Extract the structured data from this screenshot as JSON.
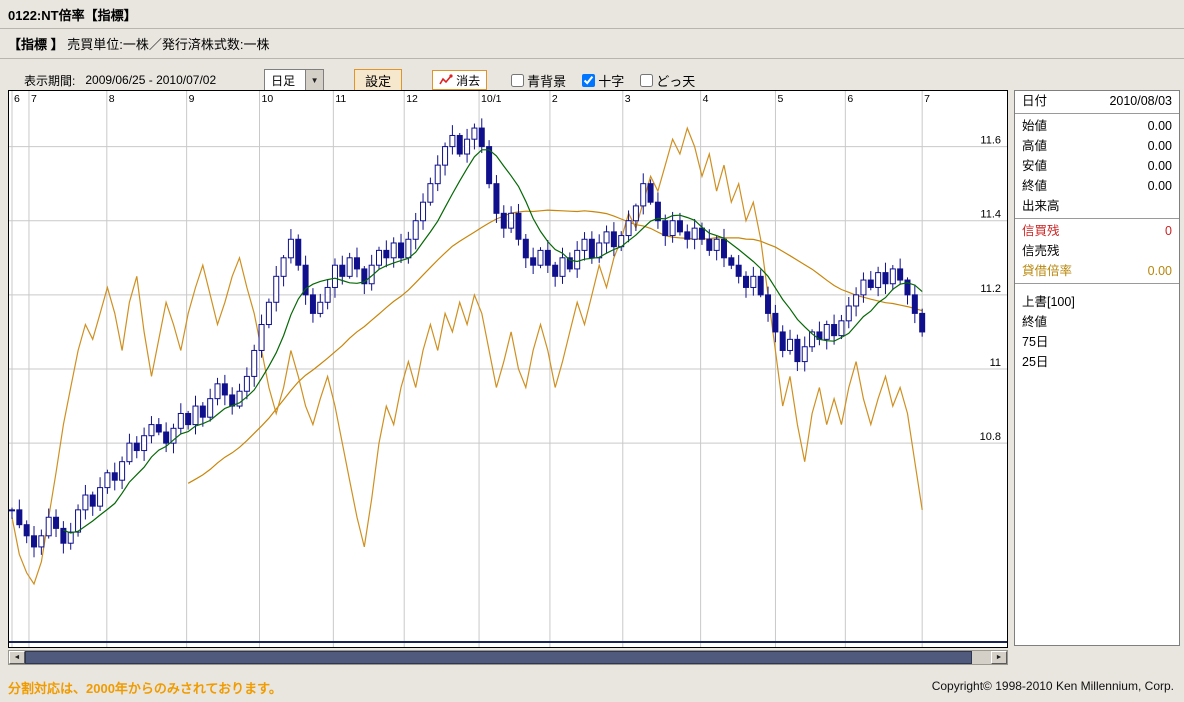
{
  "header": {
    "title": "0122:NT倍率【指標】",
    "subtitle_label": "【指標 】",
    "subtitle_text": "売買単位:一株／発行済株式数:一株"
  },
  "toolbar": {
    "period_label": "表示期間:",
    "period_value": "2009/06/25 - 2010/07/02",
    "timeframe_value": "日足",
    "settings_label": "設定",
    "clear_label": "消去",
    "checkboxes": [
      {
        "label": "青背景",
        "checked": false
      },
      {
        "label": "十字",
        "checked": true
      },
      {
        "label": "どっ天",
        "checked": false
      }
    ]
  },
  "side_panel": {
    "date_label": "日付",
    "date_value": "2010/08/03",
    "rows": [
      {
        "label": "始値",
        "value": "0.00"
      },
      {
        "label": "高値",
        "value": "0.00"
      },
      {
        "label": "安値",
        "value": "0.00"
      },
      {
        "label": "終値",
        "value": "0.00"
      },
      {
        "label": "出来高",
        "value": ""
      }
    ],
    "credit_rows": [
      {
        "label": "信買残",
        "value": "0"
      },
      {
        "label": "信売残",
        "value": ""
      },
      {
        "label": "貸借倍率",
        "value": "0.00"
      }
    ],
    "credit_colors": {
      "shinkai": "#cc2222",
      "shinuri": "#000000",
      "taishaku": "#b8860b"
    },
    "legend": {
      "overlay": "上書[100]",
      "items": [
        "終値",
        "75日",
        "25日"
      ]
    }
  },
  "footer": {
    "note": "分割対応は、2000年からのみされております。",
    "copyright": "Copyright© 1998-2010 Ken Millennium, Corp."
  },
  "chart_data": {
    "type": "candlestick",
    "title": "0122:NT倍率 日足 2009/06/25 - 2010/07/02",
    "grid": true,
    "y_axis": {
      "min": 10.25,
      "max": 11.75,
      "gridlines": [
        11.6,
        11.4,
        11.2,
        11,
        10.8
      ],
      "side": "right"
    },
    "x_axis": {
      "data_start": 0.003,
      "data_end": 0.915,
      "months": [
        {
          "label": "6",
          "pos": 0.003
        },
        {
          "label": "7",
          "pos": 0.02
        },
        {
          "label": "8",
          "pos": 0.098
        },
        {
          "label": "9",
          "pos": 0.178
        },
        {
          "label": "10",
          "pos": 0.251
        },
        {
          "label": "11",
          "pos": 0.325
        },
        {
          "label": "12",
          "pos": 0.396
        },
        {
          "label": "10/1",
          "pos": 0.471
        },
        {
          "label": "2",
          "pos": 0.542
        },
        {
          "label": "3",
          "pos": 0.615
        },
        {
          "label": "4",
          "pos": 0.693
        },
        {
          "label": "5",
          "pos": 0.768
        },
        {
          "label": "6",
          "pos": 0.838
        },
        {
          "label": "7",
          "pos": 0.915
        }
      ]
    },
    "colors": {
      "candle": "#10108c",
      "ma_short": "#056805",
      "ma_long": "#c8860a",
      "overlay": "#cf9021",
      "grid": "#c9c9c9"
    },
    "series": [
      {
        "name": "終値(ローソク足)",
        "kind": "candle",
        "color": "#10108c",
        "close": [
          10.62,
          10.58,
          10.55,
          10.52,
          10.55,
          10.6,
          10.57,
          10.53,
          10.56,
          10.62,
          10.66,
          10.63,
          10.68,
          10.72,
          10.7,
          10.75,
          10.8,
          10.78,
          10.82,
          10.85,
          10.83,
          10.8,
          10.84,
          10.88,
          10.85,
          10.9,
          10.87,
          10.92,
          10.96,
          10.93,
          10.9,
          10.94,
          10.98,
          11.05,
          11.12,
          11.18,
          11.25,
          11.3,
          11.35,
          11.28,
          11.2,
          11.15,
          11.18,
          11.22,
          11.28,
          11.25,
          11.3,
          11.27,
          11.23,
          11.28,
          11.32,
          11.3,
          11.34,
          11.3,
          11.35,
          11.4,
          11.45,
          11.5,
          11.55,
          11.6,
          11.63,
          11.58,
          11.62,
          11.65,
          11.6,
          11.5,
          11.42,
          11.38,
          11.42,
          11.35,
          11.3,
          11.28,
          11.32,
          11.28,
          11.25,
          11.3,
          11.27,
          11.32,
          11.35,
          11.3,
          11.34,
          11.37,
          11.33,
          11.36,
          11.4,
          11.44,
          11.5,
          11.45,
          11.4,
          11.36,
          11.4,
          11.37,
          11.35,
          11.38,
          11.35,
          11.32,
          11.35,
          11.3,
          11.28,
          11.25,
          11.22,
          11.25,
          11.2,
          11.15,
          11.1,
          11.05,
          11.08,
          11.02,
          11.06,
          11.1,
          11.08,
          11.12,
          11.09,
          11.13,
          11.17,
          11.2,
          11.24,
          11.22,
          11.26,
          11.23,
          11.27,
          11.24,
          11.2,
          11.15,
          11.1
        ]
      },
      {
        "name": "25日移動平均",
        "kind": "ma",
        "window": 8,
        "color": "#056805"
      },
      {
        "name": "75日移動平均",
        "kind": "ma",
        "window": 25,
        "color": "#c8860a"
      },
      {
        "name": "上書[100]",
        "kind": "line",
        "color": "#cf9021",
        "values": [
          10.6,
          10.5,
          10.45,
          10.42,
          10.48,
          10.6,
          10.72,
          10.85,
          10.95,
          11.05,
          11.12,
          11.08,
          11.15,
          11.22,
          11.15,
          11.05,
          11.18,
          11.25,
          11.1,
          10.98,
          11.08,
          11.18,
          11.12,
          11.05,
          11.15,
          11.22,
          11.28,
          11.2,
          11.12,
          11.18,
          11.25,
          11.3,
          11.22,
          11.15,
          11.05,
          10.95,
          10.88,
          10.95,
          11.05,
          10.98,
          10.9,
          10.85,
          10.92,
          10.98,
          10.9,
          10.8,
          10.7,
          10.6,
          10.52,
          10.65,
          10.8,
          10.9,
          10.85,
          10.95,
          11.02,
          10.95,
          11.05,
          11.12,
          11.05,
          11.15,
          11.1,
          11.18,
          11.12,
          11.2,
          11.15,
          11.05,
          10.95,
          11.02,
          11.1,
          11.0,
          10.95,
          11.05,
          11.12,
          11.05,
          10.95,
          11.02,
          11.1,
          11.18,
          11.12,
          11.2,
          11.28,
          11.22,
          11.3,
          11.35,
          11.42,
          11.38,
          11.45,
          11.52,
          11.48,
          11.55,
          11.62,
          11.58,
          11.65,
          11.6,
          11.52,
          11.58,
          11.48,
          11.55,
          11.45,
          11.5,
          11.4,
          11.45,
          11.35,
          11.2,
          11.05,
          10.9,
          10.98,
          10.85,
          10.75,
          10.88,
          10.95,
          10.85,
          10.92,
          10.85,
          10.95,
          11.02,
          10.92,
          10.85,
          10.92,
          10.98,
          10.9,
          10.95,
          10.88,
          10.75,
          10.62
        ]
      }
    ]
  }
}
